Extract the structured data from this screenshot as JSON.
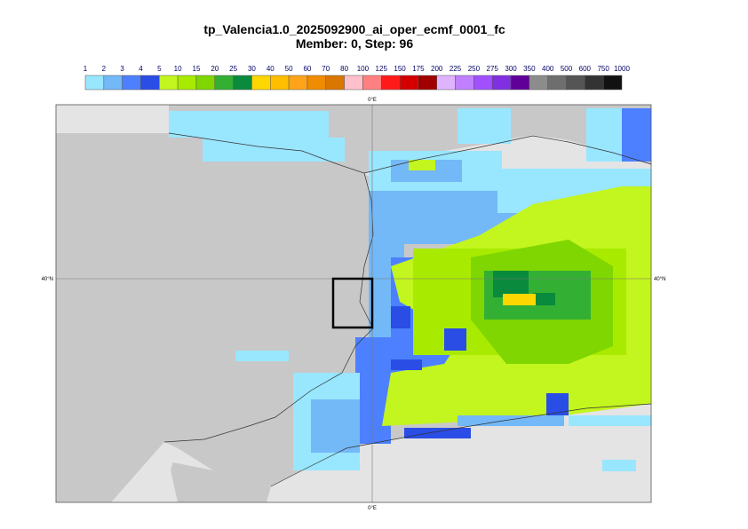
{
  "header": {
    "title": "tp_Valencia1.0_2025092900_ai_oper_ecmf_0001_fc",
    "subtitle": "Member: 0, Step: 96"
  },
  "legend": {
    "levels": [
      1,
      2,
      3,
      4,
      5,
      10,
      15,
      20,
      25,
      30,
      40,
      50,
      60,
      70,
      80,
      100,
      125,
      150,
      175,
      200,
      225,
      250,
      275,
      300,
      350,
      400,
      500,
      600,
      750,
      1000
    ],
    "colors": [
      "#99e6ff",
      "#73b8f7",
      "#4d80ff",
      "#2a4de6",
      "#c3f51e",
      "#a8eb00",
      "#7fd600",
      "#33b033",
      "#0a8a3c",
      "#ffd700",
      "#ffbf00",
      "#ffa31a",
      "#f08c00",
      "#d97700",
      "#ffc0cb",
      "#ff8080",
      "#ff1a1a",
      "#d40000",
      "#a00000",
      "#e0b3ff",
      "#c080ff",
      "#a050ff",
      "#8030e0",
      "#600099",
      "#8c8c8c",
      "#6e6e6e",
      "#555555",
      "#333333",
      "#111111"
    ]
  },
  "map": {
    "meridian_label": "0°E",
    "parallel_label": "40°N"
  }
}
